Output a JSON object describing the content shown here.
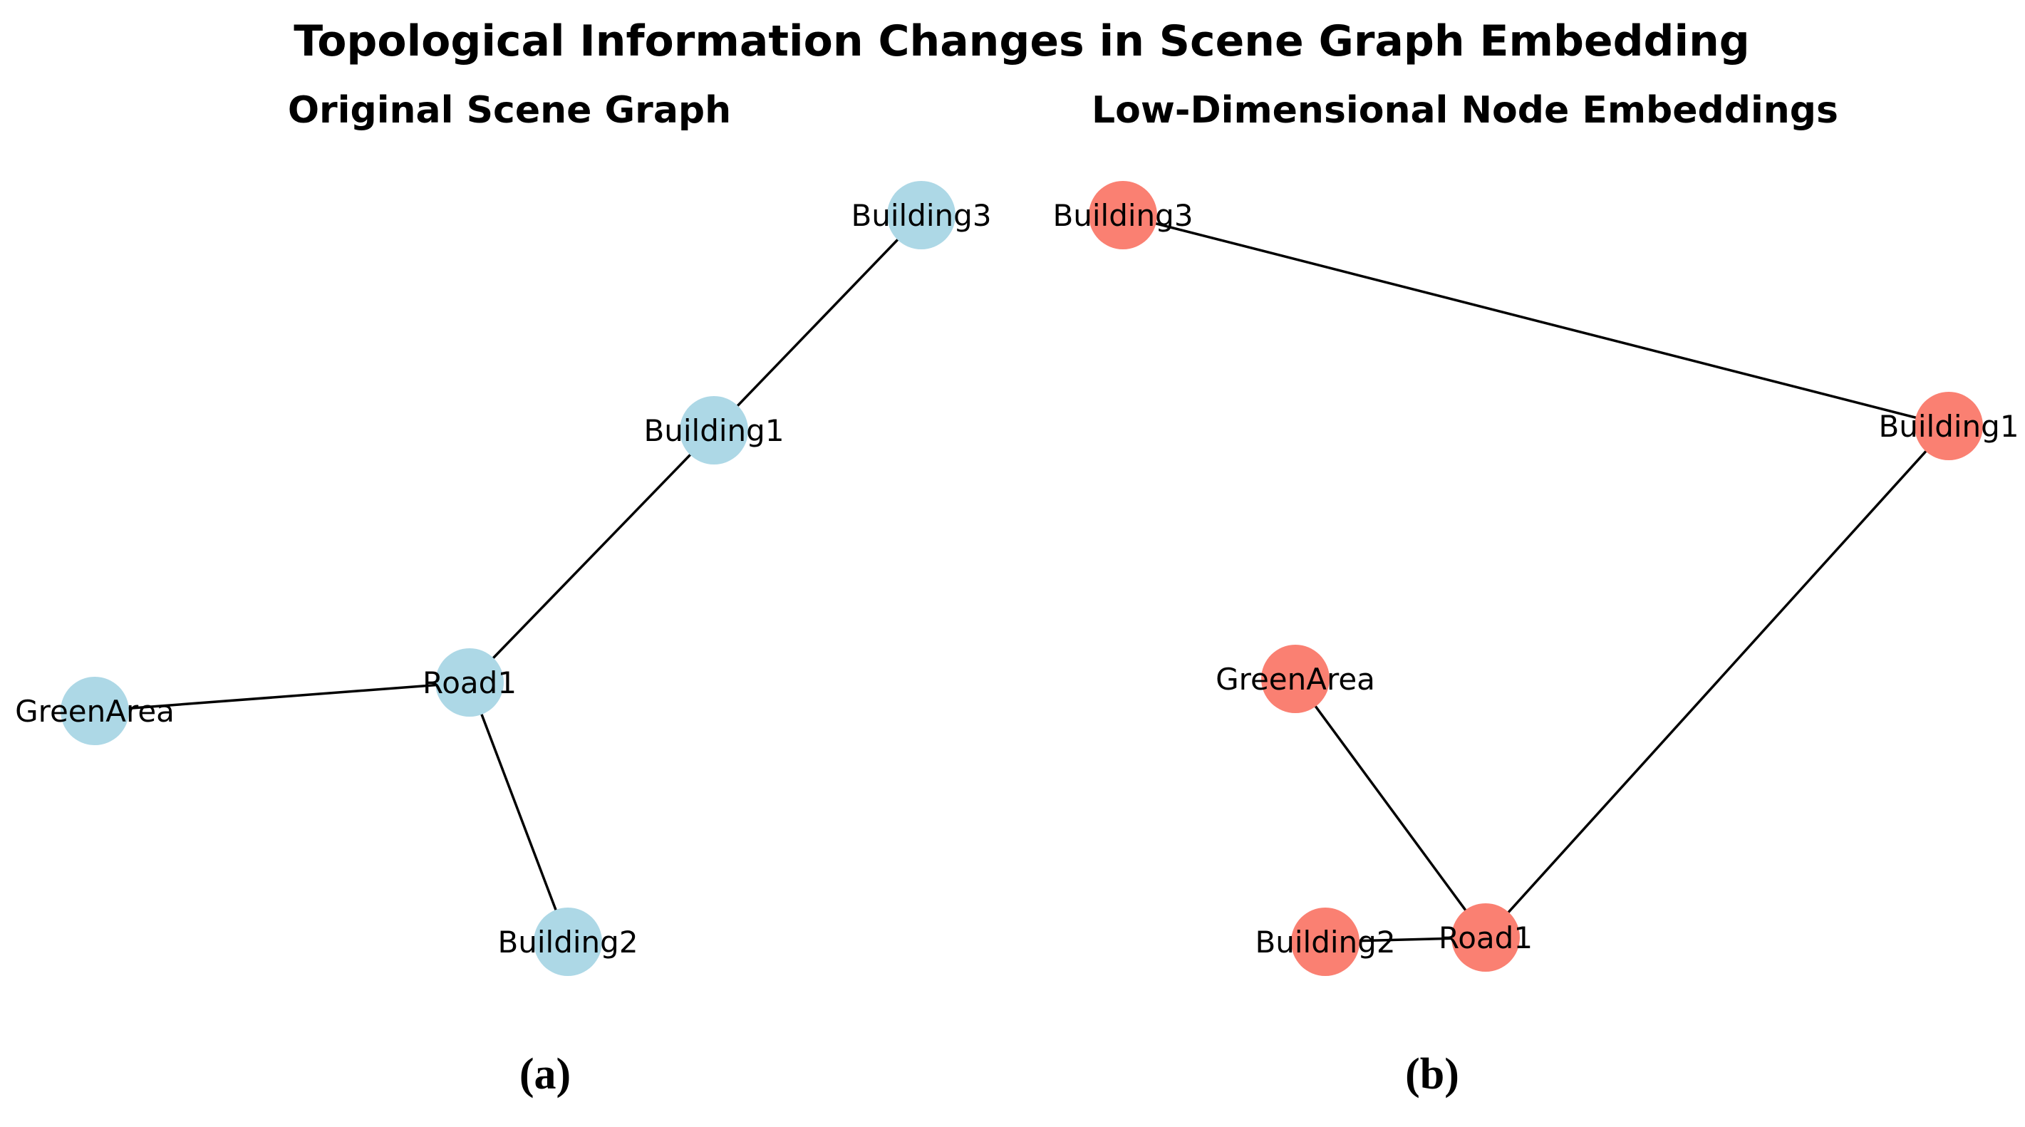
{
  "figure": {
    "title": "Topological Information Changes in Scene Graph Embedding",
    "panels": [
      {
        "id": "a",
        "subtitle": "Original Scene Graph",
        "caption": "(a)",
        "node_color": "#add8e6",
        "nodes": [
          {
            "id": "Building3",
            "label": "Building3"
          },
          {
            "id": "Building1",
            "label": "Building1"
          },
          {
            "id": "Road1",
            "label": "Road1"
          },
          {
            "id": "GreenArea",
            "label": "GreenArea"
          },
          {
            "id": "Building2",
            "label": "Building2"
          }
        ],
        "edges": [
          [
            "Building3",
            "Building1"
          ],
          [
            "Building1",
            "Road1"
          ],
          [
            "Road1",
            "GreenArea"
          ],
          [
            "Road1",
            "Building2"
          ]
        ]
      },
      {
        "id": "b",
        "subtitle": "Low-Dimensional Node Embeddings",
        "caption": "(b)",
        "node_color": "#fa8072",
        "nodes": [
          {
            "id": "Building3",
            "label": "Building3"
          },
          {
            "id": "Building1",
            "label": "Building1"
          },
          {
            "id": "GreenArea",
            "label": "GreenArea"
          },
          {
            "id": "Road1",
            "label": "Road1"
          },
          {
            "id": "Building2",
            "label": "Building2"
          }
        ],
        "edges": [
          [
            "Building3",
            "Building1"
          ],
          [
            "Building1",
            "Road1"
          ],
          [
            "GreenArea",
            "Road1"
          ],
          [
            "Building2",
            "Road1"
          ]
        ]
      }
    ]
  }
}
